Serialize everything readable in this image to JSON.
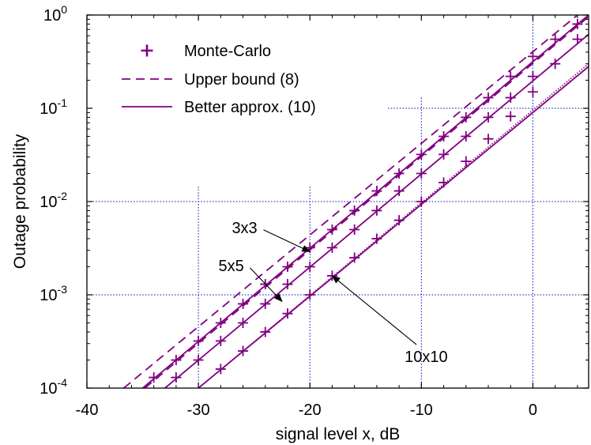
{
  "chart_data": {
    "type": "line",
    "title": "",
    "xlabel": "signal level x, dB",
    "ylabel": "Outage probability",
    "xlim": [
      -40,
      5
    ],
    "ylim": [
      0.0001,
      1
    ],
    "yscale": "log",
    "xticks": [
      "-40",
      "-30",
      "-20",
      "-10",
      "0"
    ],
    "yticks": [
      {
        "base": "10",
        "exp": "-4"
      },
      {
        "base": "10",
        "exp": "-3"
      },
      {
        "base": "10",
        "exp": "-2"
      },
      {
        "base": "10",
        "exp": "-1"
      },
      {
        "base": "10",
        "exp": "0"
      }
    ],
    "grid": "dotted",
    "legend_position": "top-left",
    "legend": [
      {
        "label": "Monte-Carlo",
        "style": "marker-plus"
      },
      {
        "label": "Upper bound (8)",
        "style": "dashed"
      },
      {
        "label": "Better approx. (10)",
        "style": "solid"
      }
    ],
    "color": "#800080",
    "grid_color": "#0000cc",
    "series": [
      {
        "name": "3x3",
        "upper_bound": {
          "x": [
            -36.7,
            4
          ],
          "y": [
            0.0001,
            1
          ]
        },
        "approx": {
          "x": [
            -35.0,
            5
          ],
          "y": [
            0.0001,
            1
          ]
        },
        "monte_carlo": {
          "x": [
            -34,
            -32,
            -30,
            -28,
            -26,
            -24,
            -22,
            -20,
            -18,
            -16,
            -14,
            -12,
            -10,
            -8,
            -6,
            -4,
            -2,
            0,
            2,
            4
          ],
          "y": [
            0.00013,
            0.0002,
            0.00032,
            0.0005,
            0.0008,
            0.0013,
            0.002,
            0.0032,
            0.005,
            0.008,
            0.013,
            0.02,
            0.032,
            0.05,
            0.08,
            0.13,
            0.22,
            0.36,
            0.55,
            0.8
          ]
        }
      },
      {
        "name": "5x5",
        "upper_bound": {
          "x": [
            -34.8,
            5
          ],
          "y": [
            0.0001,
            0.96
          ]
        },
        "approx": {
          "x": [
            -33.0,
            5
          ],
          "y": [
            0.0001,
            0.62
          ]
        },
        "monte_carlo": {
          "x": [
            -32,
            -30,
            -28,
            -26,
            -24,
            -22,
            -20,
            -18,
            -16,
            -14,
            -12,
            -10,
            -8,
            -6,
            -4,
            -2,
            0,
            2,
            4
          ],
          "y": [
            0.00013,
            0.0002,
            0.00032,
            0.0005,
            0.0008,
            0.0013,
            0.002,
            0.0032,
            0.005,
            0.008,
            0.013,
            0.02,
            0.032,
            0.05,
            0.08,
            0.13,
            0.22,
            0.3,
            0.55
          ]
        }
      },
      {
        "name": "10x10",
        "upper_bound": {
          "x": [
            -30,
            5
          ],
          "y": [
            0.0001,
            0.3
          ]
        },
        "approx": {
          "x": [
            -30,
            5
          ],
          "y": [
            0.0001,
            0.28
          ]
        },
        "monte_carlo": {
          "x": [
            -28,
            -26,
            -24,
            -22,
            -20,
            -18,
            -16,
            -14,
            -12,
            -10,
            -8,
            -6,
            -4,
            -2,
            0
          ],
          "y": [
            0.00016,
            0.00025,
            0.0004,
            0.00063,
            0.001,
            0.0016,
            0.0025,
            0.004,
            0.0063,
            0.01,
            0.016,
            0.027,
            0.047,
            0.082,
            0.15
          ]
        }
      }
    ],
    "annotations": [
      {
        "text": "3x3",
        "text_at": [
          -27.0,
          0.0046
        ],
        "arrow_to": [
          -20.0,
          0.0029
        ]
      },
      {
        "text": "5x5",
        "text_at": [
          -28.2,
          0.0018
        ],
        "arrow_to": [
          -22.5,
          0.00085
        ]
      },
      {
        "text": "10x10",
        "text_at": [
          -11.5,
          0.00019
        ],
        "arrow_to": [
          -18.0,
          0.0016
        ]
      }
    ]
  }
}
